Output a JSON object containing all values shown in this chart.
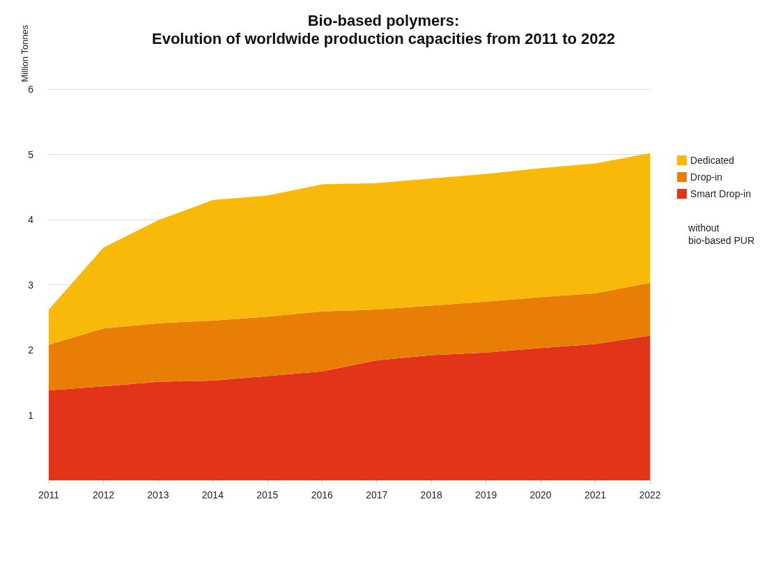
{
  "chart_data": {
    "type": "area",
    "title": "Bio-based polymers:",
    "subtitle": "Evolution of worldwide production capacities from 2011 to 2022",
    "ylabel": "Million Tonnes",
    "categories": [
      "2011",
      "2012",
      "2013",
      "2014",
      "2015",
      "2016",
      "2017",
      "2018",
      "2019",
      "2020",
      "2021",
      "2022"
    ],
    "stacked": true,
    "series": [
      {
        "name": "Smart Drop-in",
        "color": "#e23419",
        "values": [
          1.38,
          1.44,
          1.51,
          1.53,
          1.6,
          1.67,
          1.84,
          1.92,
          1.96,
          2.03,
          2.09,
          2.22
        ]
      },
      {
        "name": "Drop-in",
        "color": "#e87e05",
        "values": [
          0.7,
          0.89,
          0.9,
          0.92,
          0.91,
          0.92,
          0.78,
          0.76,
          0.78,
          0.78,
          0.78,
          0.81
        ]
      },
      {
        "name": "Dedicated",
        "color": "#f8b90a",
        "values": [
          0.54,
          1.24,
          1.58,
          1.85,
          1.86,
          1.95,
          1.94,
          1.95,
          1.96,
          1.98,
          1.99,
          1.99
        ]
      }
    ],
    "ylim": [
      0,
      6
    ],
    "yticks": [
      1,
      2,
      3,
      4,
      5,
      6
    ],
    "grid": "y",
    "legend": "right",
    "marker": "none",
    "annotations": [
      "without\nbio-based PUR"
    ]
  }
}
